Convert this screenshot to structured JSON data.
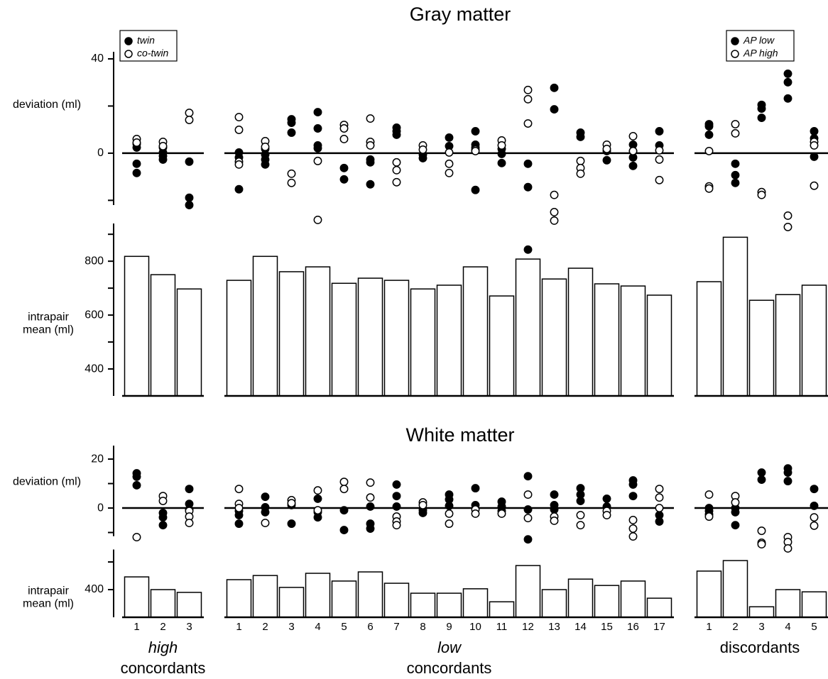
{
  "chart_data": {
    "type": "paired-dot-bar",
    "panels": [
      {
        "title": "Gray matter",
        "deviation": {
          "ylabel": "deviation (ml)",
          "ylim": [
            -22,
            43
          ],
          "yticks": [
            0,
            40
          ],
          "minor_yticks": [
            -20,
            20
          ]
        },
        "mean": {
          "ylabel": [
            "intrapair",
            "mean (ml)"
          ],
          "ylim": [
            300,
            940
          ],
          "yticks": [
            400,
            600,
            800
          ],
          "minor_yticks": [
            500,
            700,
            900
          ]
        }
      },
      {
        "title": "White matter",
        "deviation": {
          "ylabel": "deviation (ml)",
          "ylim": [
            -11.5,
            25.5
          ],
          "yticks": [
            0,
            20
          ],
          "minor_yticks": [
            -10,
            10
          ]
        },
        "mean": {
          "ylabel": [
            "intrapair",
            "mean (ml)"
          ],
          "ylim": [
            300,
            545
          ],
          "yticks": [
            400
          ],
          "minor_yticks": [
            500
          ]
        }
      }
    ],
    "groups": [
      {
        "label": [
          "high",
          "concordants"
        ],
        "label_italic": [
          true,
          false
        ],
        "categories": [
          1,
          2,
          3
        ],
        "legend": [
          "twin",
          "co-twin"
        ],
        "panels": [
          {
            "means": [
              818,
              750,
              697
            ],
            "series": [
              {
                "marker": "filled",
                "values": [
                  [
                    3.9,
                    2.4,
                    -4.5,
                    -8.4
                  ],
                  [
                    2.4,
                    0.3,
                    -1.2,
                    -2.7
                  ],
                  [
                    -3.6,
                    -18.9,
                    -22
                  ]
                ]
              },
              {
                "marker": "open",
                "values": [
                  [
                    6,
                    4.5
                  ],
                  [
                    4.8,
                    3
                  ],
                  [
                    17.1,
                    14.1
                  ]
                ]
              }
            ]
          },
          {
            "means": [
              446,
              400,
              390
            ],
            "series": [
              {
                "marker": "filled",
                "values": [
                  [
                    14.2,
                    12.8,
                    9.3
                  ],
                  [
                    -2,
                    -3.8,
                    -7
                  ],
                  [
                    7.8,
                    1.7,
                    -0.6
                  ]
                ]
              },
              {
                "marker": "open",
                "values": [
                  [
                    -11.9
                  ],
                  [
                    4.9,
                    2.9
                  ],
                  [
                    -1.2,
                    -3.5,
                    -6.1
                  ]
                ]
              }
            ]
          }
        ]
      },
      {
        "label": [
          "low",
          "concordants"
        ],
        "label_italic": [
          true,
          false
        ],
        "categories": [
          1,
          2,
          3,
          4,
          5,
          6,
          7,
          8,
          9,
          10,
          11,
          12,
          13,
          14,
          15,
          16,
          17
        ],
        "panels": [
          {
            "means": [
              729,
              818,
              761,
              779,
              718,
              737,
              729,
              697,
              711,
              779,
              671,
              808,
              734,
              774,
              716,
              708,
              674
            ],
            "series": [
              {
                "marker": "filled",
                "values": [
                  [
                    0.3,
                    -1.8,
                    -15.3
                  ],
                  [
                    1.8,
                    -0.6,
                    -2.7,
                    -4.8
                  ],
                  [
                    14.4,
                    12.9,
                    8.7
                  ],
                  [
                    17.4,
                    10.5,
                    3.3,
                    2.1
                  ],
                  [
                    -6.3,
                    -11.1
                  ],
                  [
                    -2.7,
                    -3.9,
                    -13.2
                  ],
                  [
                    10.8,
                    9.3,
                    7.8
                  ],
                  [
                    -0.6,
                    -2.1
                  ],
                  [
                    6.6,
                    3
                  ],
                  [
                    9.3,
                    3.6,
                    2.4,
                    -15.6
                  ],
                  [
                    1.8,
                    -0.3,
                    -4.2
                  ],
                  [
                    -4.5,
                    -14.4,
                    -40.9
                  ],
                  [
                    27.7,
                    18.6
                  ],
                  [
                    8.7,
                    6.9
                  ],
                  [
                    0.9,
                    -3
                  ],
                  [
                    3.6,
                    0.9,
                    -1.8,
                    -5.4
                  ],
                  [
                    9.3,
                    3.3
                  ]
                ]
              },
              {
                "marker": "open",
                "values": [
                  [
                    15.3,
                    9.9,
                    -3.6,
                    -4.8
                  ],
                  [
                    5.1,
                    2.7
                  ],
                  [
                    -8.7,
                    -12.6
                  ],
                  [
                    -3.3,
                    -28.3
                  ],
                  [
                    12,
                    10.5,
                    6
                  ],
                  [
                    14.7,
                    4.8,
                    3.3
                  ],
                  [
                    -3.9,
                    -7.2,
                    -12.3
                  ],
                  [
                    3.3,
                    1.5
                  ],
                  [
                    0.3,
                    -4.5,
                    -8.4
                  ],
                  [
                    1.5,
                    0.9
                  ],
                  [
                    5.4,
                    3.3
                  ],
                  [
                    26.8,
                    22.9,
                    12.6
                  ],
                  [
                    -17.7,
                    -25,
                    -28.6
                  ],
                  [
                    -3.3,
                    -6.3,
                    -8.7
                  ],
                  [
                    3.6,
                    1.8
                  ],
                  [
                    7.2,
                    0.9
                  ],
                  [
                    1.2,
                    -2.7,
                    -11.4
                  ]
                ]
              }
            ]
          },
          {
            "means": [
              436,
              451,
              408,
              459,
              431,
              464,
              423,
              387,
              387,
              403,
              356,
              487,
              400,
              438,
              415,
              431,
              369
            ],
            "series": [
              {
                "marker": "filled",
                "values": [
                  [
                    -1.2,
                    -2.9,
                    -6.4
                  ],
                  [
                    4.6,
                    0.3,
                    -1.7
                  ],
                  [
                    1.2,
                    -6.4
                  ],
                  [
                    3.8,
                    -1.7,
                    -3.8
                  ],
                  [
                    -0.9,
                    -9
                  ],
                  [
                    0.6,
                    -6.4,
                    -8.4
                  ],
                  [
                    9.6,
                    4.9,
                    0.6
                  ],
                  [
                    -0.9,
                    -2
                  ],
                  [
                    5.5,
                    3.5,
                    0.9
                  ],
                  [
                    8.1,
                    1.2
                  ],
                  [
                    2.6,
                    0.6,
                    -1.2
                  ],
                  [
                    13,
                    -0.6,
                    -12.8
                  ],
                  [
                    5.5,
                    1.2,
                    -0.6
                  ],
                  [
                    8.1,
                    5.5,
                    2.9
                  ],
                  [
                    3.8,
                    0.6
                  ],
                  [
                    11.3,
                    9.6,
                    4.9
                  ],
                  [
                    -2.9,
                    -5.5
                  ]
                ]
              },
              {
                "marker": "open",
                "values": [
                  [
                    7.8,
                    1.7,
                    0
                  ],
                  [
                    -6.1
                  ],
                  [
                    3.2,
                    2
                  ],
                  [
                    7.2,
                    -0.9
                  ],
                  [
                    10.7,
                    7.8
                  ],
                  [
                    10.4,
                    4.3
                  ],
                  [
                    -3.5,
                    -5.5,
                    -7
                  ],
                  [
                    2.3,
                    1.2
                  ],
                  [
                    -2.3,
                    -6.4
                  ],
                  [
                    -0.6,
                    -2.3
                  ],
                  [
                    -2.3
                  ],
                  [
                    5.5,
                    -4.1
                  ],
                  [
                    -3.5,
                    -5.2
                  ],
                  [
                    -2.9,
                    -7
                  ],
                  [
                    -1.2,
                    -2.9
                  ],
                  [
                    -4.9,
                    -8.4,
                    -11.6
                  ],
                  [
                    7.8,
                    4.3,
                    0
                  ]
                ]
              }
            ]
          }
        ]
      },
      {
        "label": [
          "discordants"
        ],
        "label_italic": [
          false
        ],
        "categories": [
          1,
          2,
          3,
          4,
          5
        ],
        "legend": [
          "AP low",
          "AP high"
        ],
        "panels": [
          {
            "means": [
              724,
              889,
              655,
              676,
              711
            ],
            "series": [
              {
                "marker": "filled",
                "values": [
                  [
                    12.3,
                    11.4,
                    7.8
                  ],
                  [
                    -4.5,
                    -9.3,
                    -12.6
                  ],
                  [
                    20.5,
                    18.9,
                    15
                  ],
                  [
                    33.7,
                    30.1,
                    23.2
                  ],
                  [
                    9.3,
                    6.3,
                    -1.5
                  ]
                ]
              },
              {
                "marker": "open",
                "values": [
                  [
                    0.9,
                    -14.1,
                    -15
                  ],
                  [
                    12.3,
                    8.4
                  ],
                  [
                    -16.5,
                    -17.7
                  ],
                  [
                    -26.5,
                    -31.3
                  ],
                  [
                    4.8,
                    3.3,
                    -13.8
                  ]
                ]
              }
            ]
          },
          {
            "means": [
              467,
              505,
              338,
              400,
              392
            ],
            "series": [
              {
                "marker": "filled",
                "values": [
                  [
                    0,
                    -1.2,
                    -2.6
                  ],
                  [
                    0,
                    -1.7,
                    -7
                  ],
                  [
                    14.5,
                    11.6
                  ],
                  [
                    16.2,
                    14.5,
                    11
                  ],
                  [
                    7.8,
                    0.9
                  ]
                ]
              },
              {
                "marker": "open",
                "values": [
                  [
                    5.5,
                    -3.5
                  ],
                  [
                    4.9,
                    2.3
                  ],
                  [
                    -9.3,
                    -14.2,
                    -14.8
                  ],
                  [
                    -11.9,
                    -13.9,
                    -16.5
                  ],
                  [
                    -3.8,
                    -7.2
                  ]
                ]
              }
            ]
          }
        ]
      }
    ]
  }
}
